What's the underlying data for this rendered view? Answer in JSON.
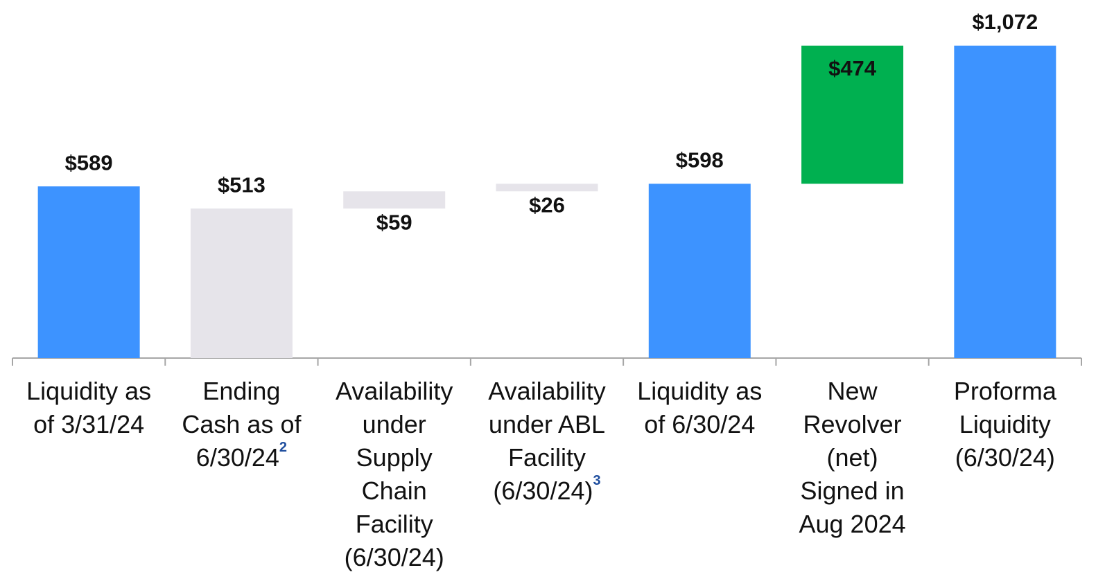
{
  "chart_data": {
    "type": "waterfall",
    "categories": [
      [
        "Liquidity as",
        "of 3/31/24"
      ],
      [
        "Ending",
        "Cash as of",
        "6/30/24"
      ],
      [
        "Availability",
        "under",
        "Supply",
        "Chain",
        "Facility",
        "(6/30/24)"
      ],
      [
        "Availability",
        "under ABL",
        "Facility",
        "(6/30/24)"
      ],
      [
        "Liquidity as",
        "of 6/30/24"
      ],
      [
        "New",
        "Revolver",
        "(net)",
        "Signed in",
        "Aug 2024"
      ],
      [
        "Proforma",
        "Liquidity",
        "(6/30/24)"
      ]
    ],
    "footnotes": [
      null,
      "2",
      null,
      "3",
      null,
      null,
      null
    ],
    "values": [
      589,
      513,
      59,
      26,
      598,
      474,
      1072
    ],
    "value_labels": [
      "$589",
      "$513",
      "$59",
      "$26",
      "$598",
      "$474",
      "$1,072"
    ],
    "bar_kinds": [
      "total",
      "total",
      "delta",
      "delta",
      "total",
      "delta",
      "total"
    ],
    "colors": [
      "#3d93ff",
      "#e6e4ea",
      "#e6e4ea",
      "#e6e4ea",
      "#3d93ff",
      "#00b050",
      "#3d93ff"
    ],
    "ylim": [
      0,
      1200
    ]
  }
}
